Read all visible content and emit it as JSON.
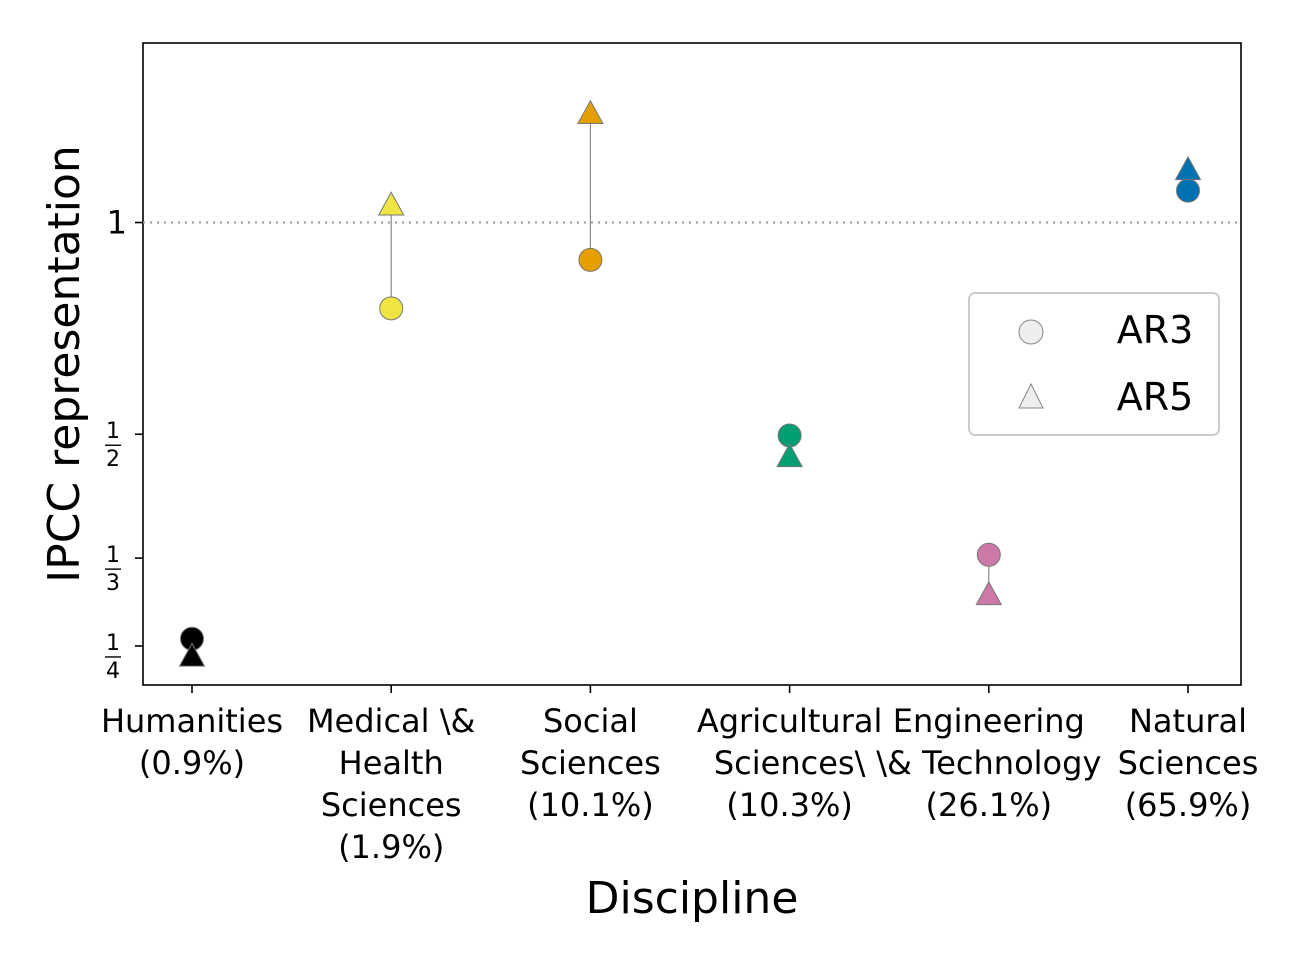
{
  "chart_data": {
    "type": "scatter",
    "xlabel": "Discipline",
    "ylabel": "IPCC representation",
    "y_scale": "log",
    "ylim": [
      0.22,
      1.8
    ],
    "y_reference_line": 1,
    "y_ticks": [
      {
        "value": 0.25,
        "num": "1",
        "den": "4"
      },
      {
        "value": 0.3333,
        "num": "1",
        "den": "3"
      },
      {
        "value": 0.5,
        "num": "1",
        "den": "2"
      },
      {
        "value": 1,
        "label": "1"
      }
    ],
    "categories": [
      {
        "lines": [
          "Humanities",
          "(0.9%)"
        ],
        "color": "#000000",
        "ar3": 0.256,
        "ar5": 0.242
      },
      {
        "lines": [
          "Medical \\&",
          "Health",
          "Sciences",
          "(1.9%)"
        ],
        "color": "#f0e442",
        "ar3": 0.755,
        "ar5": 1.06
      },
      {
        "lines": [
          "Social",
          "Sciences",
          "(10.1%)"
        ],
        "color": "#e69f00",
        "ar3": 0.885,
        "ar5": 1.43
      },
      {
        "lines": [
          "Agricultural",
          "Sciences\\",
          "(10.3%)"
        ],
        "color": "#009e73",
        "ar3": 0.498,
        "ar5": 0.465
      },
      {
        "lines": [
          "Engineering",
          "\\& Technology",
          "(26.1%)"
        ],
        "color": "#cc79a7",
        "ar3": 0.337,
        "ar5": 0.296
      },
      {
        "lines": [
          "Natural",
          "Sciences",
          "(65.9%)"
        ],
        "color": "#0072b2",
        "ar3": 1.11,
        "ar5": 1.19
      }
    ],
    "legend": {
      "placement": "center-right",
      "entries": [
        {
          "name": "AR3",
          "marker": "circle"
        },
        {
          "name": "AR5",
          "marker": "triangle"
        }
      ]
    }
  }
}
